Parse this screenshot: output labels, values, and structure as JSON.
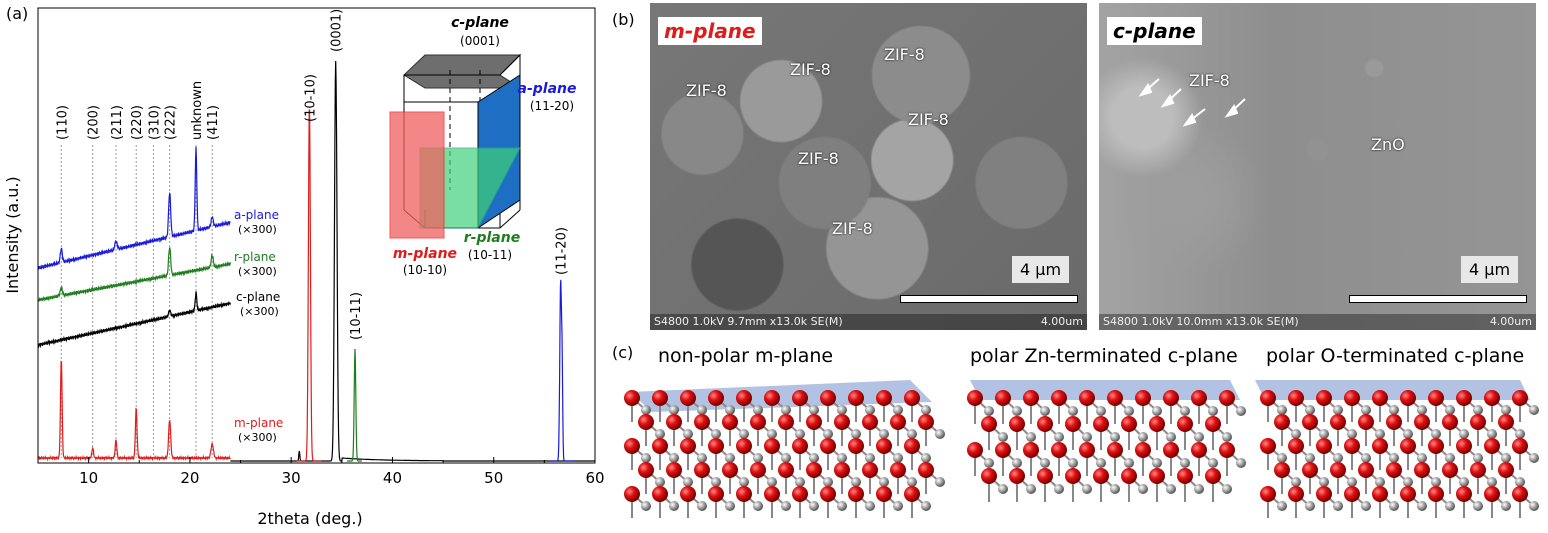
{
  "panel_labels": {
    "a": "(a)",
    "b": "(b)",
    "c": "(c)"
  },
  "chart_data": {
    "type": "line",
    "xlabel": "2theta (deg.)",
    "ylabel": "Intensity (a.u.)",
    "xlim": [
      5,
      60
    ],
    "xticks": [
      10,
      20,
      30,
      40,
      50,
      60
    ],
    "peak_labels": [
      {
        "label": "(110)",
        "x": 7.3
      },
      {
        "label": "(200)",
        "x": 10.4
      },
      {
        "label": "(211)",
        "x": 12.7
      },
      {
        "label": "(220)",
        "x": 14.7
      },
      {
        "label": "(310)",
        "x": 16.4
      },
      {
        "label": "(222)",
        "x": 18.0
      },
      {
        "label": "unknown",
        "x": 20.6
      },
      {
        "label": "(411)",
        "x": 22.2
      },
      {
        "label": "(10-10)",
        "x": 31.8
      },
      {
        "label": "(0001)",
        "x": 34.4
      },
      {
        "label": "(10-11)",
        "x": 36.3
      },
      {
        "label": "(11-20)",
        "x": 56.6
      }
    ],
    "series": [
      {
        "name": "a-plane",
        "scale": "(×300)",
        "color": "#1a1adb"
      },
      {
        "name": "r-plane",
        "scale": "(×300)",
        "color": "#1e7d1e"
      },
      {
        "name": "c-plane",
        "scale": "(×300)",
        "color": "#000000"
      },
      {
        "name": "m-plane",
        "scale": "(×300)",
        "color": "#e01b1b"
      }
    ]
  },
  "inset": {
    "c_plane": "c-plane",
    "c_index": "(0001)",
    "a_plane": "a-plane",
    "a_index": "(11-20)",
    "m_plane": "m-plane",
    "m_index": "(10-10)",
    "r_plane": "r-plane",
    "r_index": "(10-11)"
  },
  "sem": {
    "m": {
      "tag": "m-plane",
      "zif_labels": [
        "ZIF-8",
        "ZIF-8",
        "ZIF-8",
        "ZIF-8",
        "ZIF-8",
        "ZIF-8"
      ],
      "scale": "4 μm",
      "info_left": "S4800 1.0kV 9.7mm x13.0k SE(M)",
      "info_right": "4.00um"
    },
    "c": {
      "tag": "c-plane",
      "zif_label": "ZIF-8",
      "zno_label": "ZnO",
      "scale": "4 μm",
      "info_left": "S4800 1.0kV 10.0mm x13.0k SE(M)",
      "info_right": "4.00um"
    }
  },
  "crystal_titles": {
    "m": "non-polar m-plane",
    "zn": "polar Zn-terminated c-plane",
    "o": "polar O-terminated c-plane"
  }
}
